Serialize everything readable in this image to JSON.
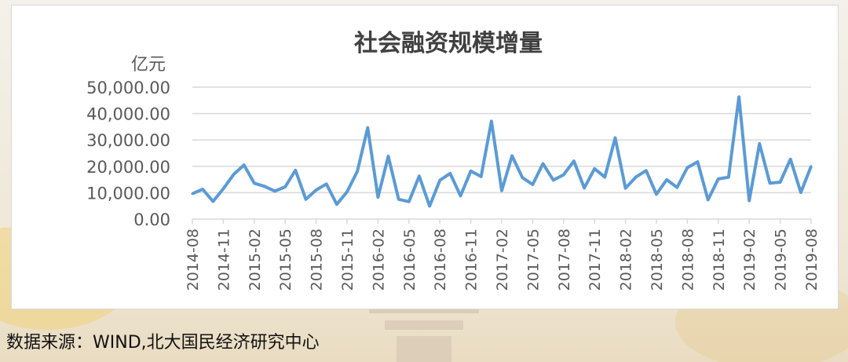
{
  "source": "数据来源：WIND,北大国民经济研究中心",
  "colors": {
    "line": "#5b9bd5",
    "grid": "#d9d9d9",
    "text": "#595959",
    "title": "#404040"
  },
  "chart_data": {
    "type": "line",
    "title": "社会融资规模增量",
    "ylabel": "亿元",
    "xlabel": "",
    "ylim": [
      0,
      50000
    ],
    "yticks": [
      0,
      10000,
      20000,
      30000,
      40000,
      50000
    ],
    "ytick_labels": [
      "0.00",
      "10,000.00",
      "20,000.00",
      "30,000.00",
      "40,000.00",
      "50,000.00"
    ],
    "grid": true,
    "x": [
      "2014-08",
      "2014-09",
      "2014-10",
      "2014-11",
      "2014-12",
      "2015-01",
      "2015-02",
      "2015-03",
      "2015-04",
      "2015-05",
      "2015-06",
      "2015-07",
      "2015-08",
      "2015-09",
      "2015-10",
      "2015-11",
      "2015-12",
      "2016-01",
      "2016-02",
      "2016-03",
      "2016-04",
      "2016-05",
      "2016-06",
      "2016-07",
      "2016-08",
      "2016-09",
      "2016-10",
      "2016-11",
      "2016-12",
      "2017-01",
      "2017-02",
      "2017-03",
      "2017-04",
      "2017-05",
      "2017-06",
      "2017-07",
      "2017-08",
      "2017-09",
      "2017-10",
      "2017-11",
      "2017-12",
      "2018-01",
      "2018-02",
      "2018-03",
      "2018-04",
      "2018-05",
      "2018-06",
      "2018-07",
      "2018-08",
      "2018-09",
      "2018-10",
      "2018-11",
      "2018-12",
      "2019-01",
      "2019-02",
      "2019-03",
      "2019-04",
      "2019-05",
      "2019-06",
      "2019-07",
      "2019-08"
    ],
    "xtick_labels": [
      "2014-08",
      "2014-11",
      "2015-02",
      "2015-05",
      "2015-08",
      "2015-11",
      "2016-02",
      "2016-05",
      "2016-08",
      "2016-11",
      "2017-02",
      "2017-05",
      "2017-08",
      "2017-11",
      "2018-02",
      "2018-05",
      "2018-08",
      "2018-11",
      "2019-02",
      "2019-05",
      "2019-08"
    ],
    "series": [
      {
        "values": [
          9600,
          11300,
          6700,
          11500,
          16900,
          20500,
          13600,
          12400,
          10600,
          12200,
          18500,
          7500,
          11000,
          13300,
          5600,
          10300,
          18100,
          34600,
          8300,
          23800,
          7500,
          6600,
          16300,
          4900,
          14700,
          17300,
          8800,
          18200,
          16100,
          37100,
          10800,
          24000,
          15700,
          13100,
          21000,
          14800,
          16800,
          22000,
          11800,
          19100,
          15900,
          30800,
          11700,
          15900,
          18400,
          9400,
          14900,
          12000,
          19500,
          21700,
          7300,
          15200,
          15900,
          46300,
          7000,
          28600,
          13600,
          14000,
          22700,
          10100,
          20000
        ]
      }
    ]
  }
}
